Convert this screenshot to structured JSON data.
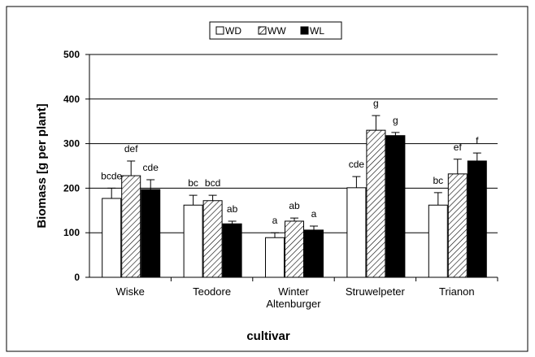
{
  "chart_data": {
    "type": "bar",
    "categories": [
      "Wiske",
      "Teodore",
      "Winter Altenburger",
      "Struwelpeter",
      "Trianon"
    ],
    "series": [
      {
        "name": "WD",
        "color": "#ffffff",
        "hatch": false,
        "values": [
          177,
          162,
          89,
          201,
          162
        ],
        "errors": [
          23,
          22,
          11,
          25,
          28
        ],
        "labels": [
          "bcde",
          "bc",
          "a",
          "cde",
          "bc"
        ]
      },
      {
        "name": "WW",
        "color": "#ffffff",
        "hatch": true,
        "values": [
          228,
          172,
          126,
          330,
          232
        ],
        "errors": [
          33,
          12,
          7,
          33,
          33
        ],
        "labels": [
          "def",
          "bcd",
          "ab",
          "g",
          "ef"
        ]
      },
      {
        "name": "WL",
        "color": "#000000",
        "hatch": false,
        "values": [
          197,
          120,
          106,
          318,
          261
        ],
        "errors": [
          22,
          6,
          9,
          7,
          18
        ],
        "labels": [
          "cde",
          "ab",
          "a",
          "g",
          "f"
        ]
      }
    ],
    "ylabel": "Biomass [g per plant]",
    "xlabel": "cultivar",
    "ylim": [
      0,
      500
    ],
    "yticks": [
      0,
      100,
      200,
      300,
      400,
      500
    ],
    "grid": true,
    "legend": "top"
  }
}
